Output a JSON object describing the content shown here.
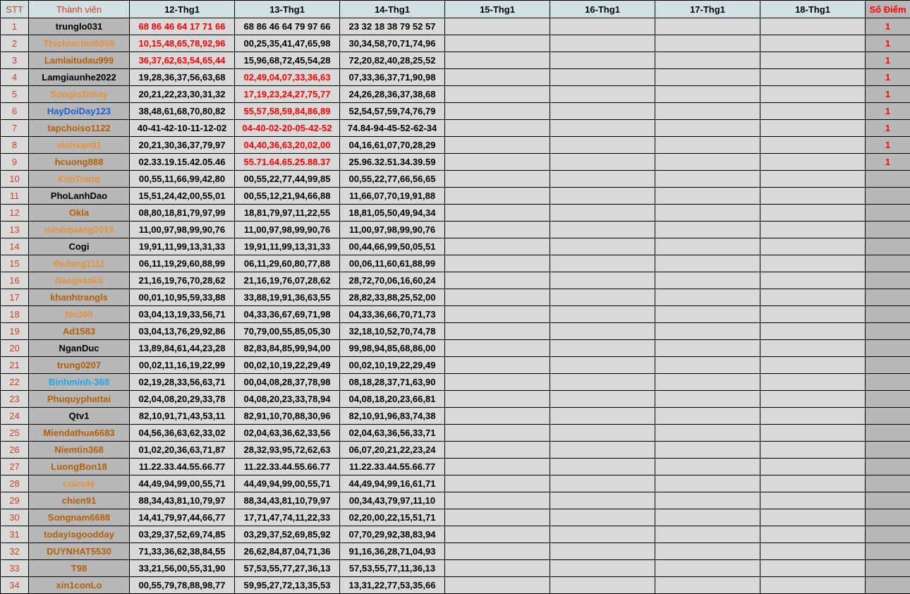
{
  "headers": {
    "stt": "STT",
    "member": "Thành viên",
    "days": [
      "12-Thg1",
      "13-Thg1",
      "14-Thg1",
      "15-Thg1",
      "16-Thg1",
      "17-Thg1",
      "18-Thg1"
    ],
    "score": "Số Điểm"
  },
  "colors": {
    "black": "#000000",
    "light_orange": "#e69138",
    "dark_orange": "#b45f06",
    "blue": "#1c5fd1",
    "cyan": "#1ea7e8",
    "hit": "#ff0000"
  },
  "rows": [
    {
      "stt": "1",
      "name": "trunglo031",
      "color": "black",
      "d": [
        "68 86 46 64 17 71 66",
        "68 86 46 64 79 97 66",
        "23 32 18 38 79 52 57"
      ],
      "hit": 0,
      "score": "1"
    },
    {
      "stt": "2",
      "name": "Thichlachoi6868",
      "color": "light_orange",
      "d": [
        "10,15,48,65,78,92,96",
        "00,25,35,41,47,65,98",
        "30,34,58,70,71,74,96"
      ],
      "hit": 0,
      "score": "1"
    },
    {
      "stt": "3",
      "name": "Lamlaitudau999",
      "color": "dark_orange",
      "d": [
        "36,37,62,63,54,65,44",
        "15,96,68,72,45,54,28",
        "72,20,82,40,28,25,52"
      ],
      "hit": 0,
      "score": "1"
    },
    {
      "stt": "4",
      "name": "Lamgiaunhe2022",
      "color": "black",
      "d": [
        "19,28,36,37,56,63,68",
        "02,49,04,07,33,36,63",
        "07,33,36,37,71,90,98"
      ],
      "hit": 1,
      "score": "1"
    },
    {
      "stt": "5",
      "name": "Songlo2nhay",
      "color": "light_orange",
      "d": [
        "20,21,22,23,30,31,32",
        "17,19,23,24,27,75,77",
        "24,26,28,36,37,38,68"
      ],
      "hit": 1,
      "score": "1"
    },
    {
      "stt": "6",
      "name": "HayDoiDay123",
      "color": "blue",
      "d": [
        "38,48,61,68,70,80,82",
        "55,57,58,59,84,86,89",
        "52,54,57,59,74,76,79"
      ],
      "hit": 1,
      "score": "1"
    },
    {
      "stt": "7",
      "name": "tapchoiso1122",
      "color": "dark_orange",
      "d": [
        "40-41-42-10-11-12-02",
        "04-40-02-20-05-42-52",
        "74.84-94-45-52-62-34"
      ],
      "hit": 1,
      "score": "1"
    },
    {
      "stt": "8",
      "name": "vinhvan01",
      "color": "light_orange",
      "d": [
        "20,21,30,36,37,79,97",
        "04,40,36,63,20,02,00",
        "04,16,61,07,70,28,29"
      ],
      "hit": 1,
      "score": "1"
    },
    {
      "stt": "9",
      "name": "hcuong888",
      "color": "dark_orange",
      "d": [
        "02.33.19.15.42.05.46",
        "55.71.64.65.25.88.37",
        "25.96.32.51.34.39.59"
      ],
      "hit": 1,
      "score": "1"
    },
    {
      "stt": "10",
      "name": "KimTrang",
      "color": "light_orange",
      "d": [
        "00,55,11,66,99,42,80",
        "00,55,22,77,44,99,85",
        "00,55,22,77,66,56,65"
      ],
      "hit": -1,
      "score": ""
    },
    {
      "stt": "11",
      "name": "PhoLanhDao",
      "color": "black",
      "d": [
        "15,51,24,42,00,55,01",
        "00,55,12,21,94,66,88",
        "11,66,07,70,19,91,88"
      ],
      "hit": -1,
      "score": ""
    },
    {
      "stt": "12",
      "name": "Okla",
      "color": "dark_orange",
      "d": [
        "08,80,18,81,79,97,99",
        "18,81,79,97,11,22,55",
        "18,81,05,50,49,94,34"
      ],
      "hit": -1,
      "score": ""
    },
    {
      "stt": "13",
      "name": "minhquang2015",
      "color": "light_orange",
      "d": [
        "11,00,97,98,99,90,76",
        "11,00,97,98,99,90,76",
        "11,00,97,98,99,90,76"
      ],
      "hit": -1,
      "score": ""
    },
    {
      "stt": "14",
      "name": "Cogi",
      "color": "black",
      "d": [
        "19,91,11,99,13,31,33",
        "19,91,11,99,13,31,33",
        "00,44,66,99,50,05,51"
      ],
      "hit": -1,
      "score": ""
    },
    {
      "stt": "15",
      "name": "thulang1111",
      "color": "light_orange",
      "d": [
        "06,11,19,29,60,88,99",
        "06,11,29,60,80,77,88",
        "00,06,11,60,61,88,99"
      ],
      "hit": -1,
      "score": ""
    },
    {
      "stt": "16",
      "name": "Naagasakii",
      "color": "light_orange",
      "d": [
        "21,16,19,76,70,28,62",
        "21,16,19,76,07,28,62",
        "28,72,70,06,16,60,24"
      ],
      "hit": -1,
      "score": ""
    },
    {
      "stt": "17",
      "name": "khanhtrangls",
      "color": "dark_orange",
      "d": [
        "00,01,10,95,59,33,88",
        "33,88,19,91,36,63,55",
        "28,82,33,88,25,52,00"
      ],
      "hit": -1,
      "score": ""
    },
    {
      "stt": "18",
      "name": "Nn300",
      "color": "light_orange",
      "d": [
        "03,04,13,19,33,56,71",
        "04,33,36,67,69,71,98",
        "04,33,36,66,70,71,73"
      ],
      "hit": -1,
      "score": ""
    },
    {
      "stt": "19",
      "name": "Ad1583",
      "color": "dark_orange",
      "d": [
        "03,04,13,76,29,92,86",
        "70,79,00,55,85,05,30",
        "32,18,10,52,70,74,78"
      ],
      "hit": -1,
      "score": ""
    },
    {
      "stt": "20",
      "name": "NganDuc",
      "color": "black",
      "d": [
        "13,89,84,61,44,23,28",
        "82,83,84,85,99,94,00",
        "99,98,94,85,68,86,00"
      ],
      "hit": -1,
      "score": ""
    },
    {
      "stt": "21",
      "name": "trung0207",
      "color": "dark_orange",
      "d": [
        "00,02,11,16,19,22,99",
        "00,02,10,19,22,29,49",
        "00,02,10,19,22,29,49"
      ],
      "hit": -1,
      "score": ""
    },
    {
      "stt": "22",
      "name": "Binhminh-368",
      "color": "cyan",
      "d": [
        "02,19,28,33,56,63,71",
        "00,04,08,28,37,78,98",
        "08,18,28,37,71,63,90"
      ],
      "hit": -1,
      "score": ""
    },
    {
      "stt": "23",
      "name": "Phuquyphattai",
      "color": "dark_orange",
      "d": [
        "02,04,08,20,29,33,78",
        "04,08,20,23,33,78,94",
        "04,08,18,20,23,66,81"
      ],
      "hit": -1,
      "score": ""
    },
    {
      "stt": "24",
      "name": "Qtv1",
      "color": "black",
      "d": [
        "82,10,91,71,43,53,11",
        "82,91,10,70,88,30,96",
        "82,10,91,96,83,74,38"
      ],
      "hit": -1,
      "score": ""
    },
    {
      "stt": "25",
      "name": "Miendathua6683",
      "color": "dark_orange",
      "d": [
        "04,56,36,63,62,33,02",
        "02,04,63,36,62,33,56",
        "02,04,63,36,56,33,71"
      ],
      "hit": -1,
      "score": ""
    },
    {
      "stt": "26",
      "name": "Niemtin368",
      "color": "dark_orange",
      "d": [
        "01,02,20,36,63,71,87",
        "28,32,93,95,72,62,63",
        "06,07,20,21,22,23,24"
      ],
      "hit": -1,
      "score": ""
    },
    {
      "stt": "27",
      "name": "LuongBon18",
      "color": "dark_orange",
      "d": [
        "11.22.33.44.55.66.77",
        "11.22.33.44.55.66.77",
        "11.22.33.44.55.66.77"
      ],
      "hit": -1,
      "score": ""
    },
    {
      "stt": "28",
      "name": "cuicute",
      "color": "light_orange",
      "d": [
        "44,49,94,99,00,55,71",
        "44,49,94,99,00,55,71",
        "44,49,94,99,16,61,71"
      ],
      "hit": -1,
      "score": ""
    },
    {
      "stt": "29",
      "name": "chien91",
      "color": "dark_orange",
      "d": [
        "88,34,43,81,10,79,97",
        "88,34,43,81,10,79,97",
        "00,34,43,79,97,11,10"
      ],
      "hit": -1,
      "score": ""
    },
    {
      "stt": "30",
      "name": "Songnam6688",
      "color": "dark_orange",
      "d": [
        "14,41,79,97,44,66,77",
        "17,71,47,74,11,22,33",
        "02,20,00,22,15,51,71"
      ],
      "hit": -1,
      "score": ""
    },
    {
      "stt": "31",
      "name": "todayisgoodday",
      "color": "dark_orange",
      "d": [
        "03,29,37,52,69,74,85",
        "03,29,37,52,69,85,92",
        "07,70,29,92,38,83,94"
      ],
      "hit": -1,
      "score": ""
    },
    {
      "stt": "32",
      "name": "DUYNHAT5530",
      "color": "dark_orange",
      "d": [
        "71,33,36,62,38,84,55",
        "26,62,84,87,04,71,36",
        "91,16,36,28,71,04,93"
      ],
      "hit": -1,
      "score": ""
    },
    {
      "stt": "33",
      "name": "T98",
      "color": "dark_orange",
      "d": [
        "33,21,56,00,55,31,90",
        "57,53,55,77,27,36,13",
        "57,53,55,77,11,36,13"
      ],
      "hit": -1,
      "score": ""
    },
    {
      "stt": "34",
      "name": "xin1conLo",
      "color": "dark_orange",
      "d": [
        "00,55,79,78,88,98,77",
        "59,95,27,72,13,35,53",
        "13,31,22,77,53,35,66"
      ],
      "hit": -1,
      "score": ""
    }
  ]
}
